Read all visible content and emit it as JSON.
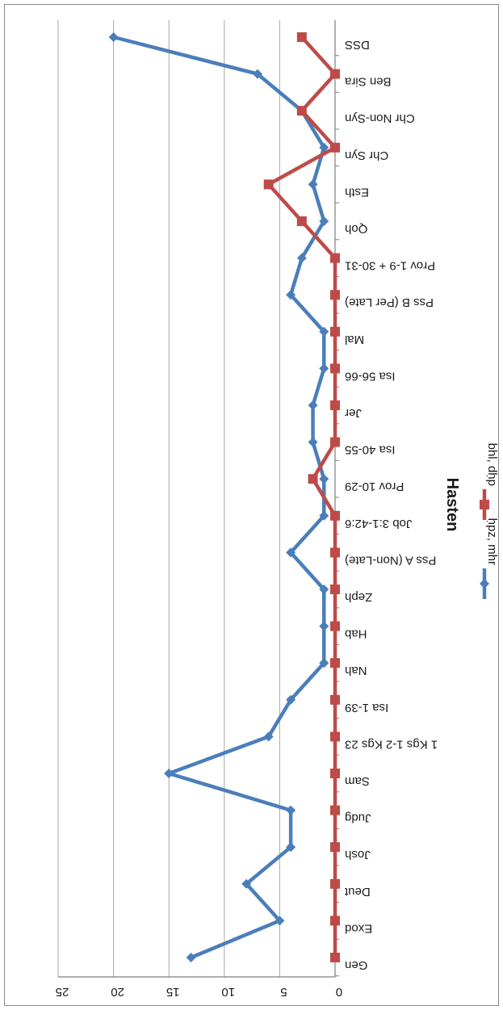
{
  "chart_data": {
    "type": "line",
    "title": "Hasten",
    "categories": [
      "Gen",
      "Exod",
      "Deut",
      "Josh",
      "Judg",
      "Sam",
      "1 Kgs 1-2 Kgs 23",
      "Isa 1-39",
      "Nah",
      "Hab",
      "Zeph",
      "Pss A (Non-Late)",
      "Job 3:1-42:6",
      "Prov 10-29",
      "Isa 40-55",
      "Jer",
      "Isa 56-66",
      "Mal",
      "Pss B (Per Late)",
      "Prov 1-9 + 30-31",
      "Qoh",
      "Esth",
      "Chr Syn",
      "Chr Non-Syn",
      "Ben Sira",
      "DSS"
    ],
    "series": [
      {
        "name": "ḥpz, mhr",
        "color": "#4a7ebb",
        "marker": "diamond",
        "values": [
          13,
          5,
          8,
          4,
          4,
          15,
          6,
          4,
          1,
          1,
          1,
          4,
          1,
          1,
          2,
          2,
          1,
          1,
          4,
          3,
          1,
          2,
          1,
          3,
          7,
          20
        ]
      },
      {
        "name": "bhl, dḥp",
        "color": "#be4b48",
        "marker": "square",
        "values": [
          0,
          0,
          0,
          0,
          0,
          0,
          0,
          0,
          0,
          0,
          0,
          0,
          0,
          2,
          0,
          0,
          0,
          0,
          0,
          0,
          3,
          6,
          0,
          3,
          0,
          3
        ]
      }
    ],
    "ylim": [
      0,
      25
    ],
    "yticks": [
      "0",
      "5",
      "10",
      "15",
      "20",
      "25"
    ],
    "grid": true,
    "legend_position": "right",
    "orientation": "rotated-180"
  }
}
